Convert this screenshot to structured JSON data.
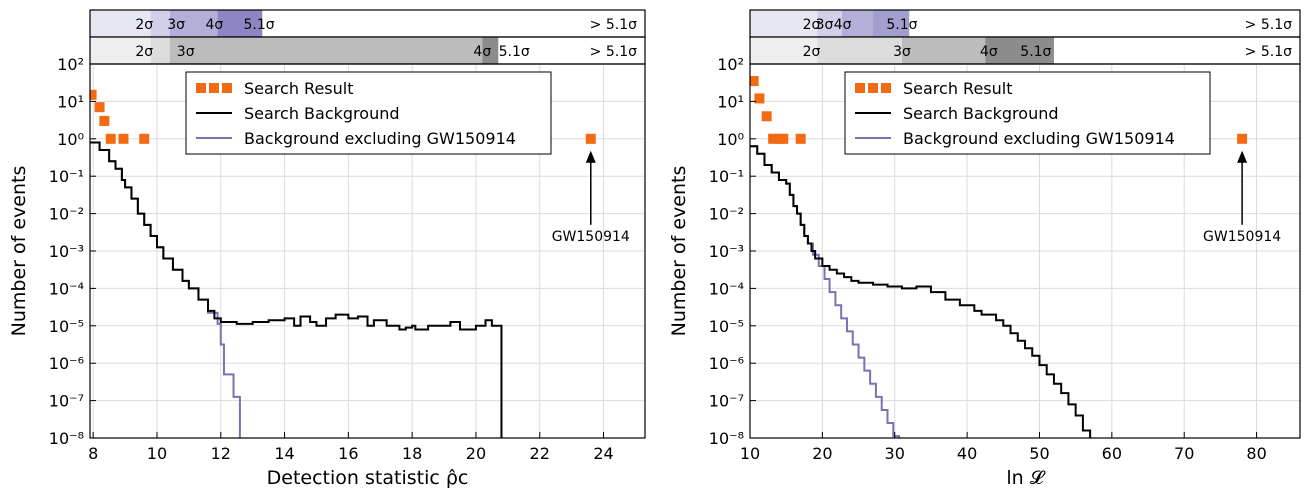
{
  "chart_data": [
    {
      "type": "line",
      "xlabel": "Detection statistic ρ̂c",
      "ylabel": "Number of events",
      "xlim": [
        7.9,
        25.3
      ],
      "ylim": [
        -8,
        2
      ],
      "y_scale": "log",
      "x_ticks": [
        8,
        10,
        12,
        14,
        16,
        18,
        20,
        22,
        24
      ],
      "y_tick_labels": [
        "10^2",
        "10^1",
        "10^0",
        "10^-1",
        "10^-2",
        "10^-3",
        "10^-4",
        "10^-5",
        "10^-6",
        "10^-7",
        "10^-8"
      ],
      "grid": true,
      "legend_position": "top-center",
      "legend": [
        {
          "label": "Search Result",
          "color": "#f26b12",
          "style": "square"
        },
        {
          "label": "Search Background",
          "color": "#000000",
          "style": "line"
        },
        {
          "label": "Background excluding GW150914",
          "color": "#7b71b3",
          "style": "line"
        }
      ],
      "annotation": {
        "text": "GW150914",
        "x": 23.6,
        "y": 1
      },
      "sigma_bands": [
        {
          "row": 1,
          "labels": [
            {
              "text": "2σ",
              "x": 9.6
            },
            {
              "text": "3σ",
              "x": 10.6
            },
            {
              "text": "4σ",
              "x": 11.8
            },
            {
              "text": "5.1σ",
              "x": 13.2
            }
          ],
          "gt_label": "> 5.1σ"
        },
        {
          "row": 2,
          "labels": [
            {
              "text": "2σ",
              "x": 9.6
            },
            {
              "text": "3σ",
              "x": 10.9
            },
            {
              "text": "4σ",
              "x": 20.2
            },
            {
              "text": "5.1σ",
              "x": 21.2
            }
          ],
          "gt_label": "> 5.1σ"
        }
      ],
      "band_colors_row1": [
        {
          "x0": 7.9,
          "x1": 9.8,
          "color": "#e7e6f3"
        },
        {
          "x0": 9.8,
          "x1": 10.4,
          "color": "#d2cfe8"
        },
        {
          "x0": 10.4,
          "x1": 11.9,
          "color": "#b3afd8"
        },
        {
          "x0": 11.9,
          "x1": 13.3,
          "color": "#8d86c2"
        }
      ],
      "band_colors_row2": [
        {
          "x0": 7.9,
          "x1": 9.8,
          "color": "#eeeeee"
        },
        {
          "x0": 9.8,
          "x1": 10.4,
          "color": "#dcdcdc"
        },
        {
          "x0": 10.4,
          "x1": 20.2,
          "color": "#bcbcbc"
        },
        {
          "x0": 20.2,
          "x1": 20.7,
          "color": "#8c8c8c"
        }
      ],
      "series": [
        {
          "name": "Search Result",
          "kind": "points",
          "x": [
            7.95,
            8.2,
            8.35,
            8.55,
            8.95,
            9.6,
            23.6
          ],
          "y": [
            15,
            7,
            3,
            1,
            1,
            1,
            1
          ]
        },
        {
          "name": "Search Background",
          "kind": "step",
          "points": [
            [
              7.9,
              -0.1
            ],
            [
              8.2,
              -0.3
            ],
            [
              8.5,
              -0.6
            ],
            [
              8.7,
              -0.8
            ],
            [
              8.9,
              -1.1
            ],
            [
              9.0,
              -1.3
            ],
            [
              9.2,
              -1.6
            ],
            [
              9.4,
              -2.0
            ],
            [
              9.6,
              -2.3
            ],
            [
              9.8,
              -2.6
            ],
            [
              10.0,
              -2.9
            ],
            [
              10.2,
              -3.2
            ],
            [
              10.5,
              -3.5
            ],
            [
              10.8,
              -3.8
            ],
            [
              11.0,
              -4.0
            ],
            [
              11.3,
              -4.3
            ],
            [
              11.6,
              -4.6
            ],
            [
              11.8,
              -4.8
            ],
            [
              12.0,
              -4.9
            ],
            [
              12.5,
              -4.95
            ],
            [
              13.0,
              -4.9
            ],
            [
              13.5,
              -4.85
            ],
            [
              14.0,
              -4.8
            ],
            [
              14.3,
              -5.0
            ],
            [
              14.5,
              -4.75
            ],
            [
              14.8,
              -4.9
            ],
            [
              15.0,
              -5.0
            ],
            [
              15.3,
              -4.8
            ],
            [
              15.6,
              -4.7
            ],
            [
              16.0,
              -4.8
            ],
            [
              16.3,
              -4.75
            ],
            [
              16.6,
              -5.0
            ],
            [
              16.8,
              -4.85
            ],
            [
              17.2,
              -5.0
            ],
            [
              17.6,
              -5.1
            ],
            [
              17.8,
              -5.05
            ],
            [
              18.0,
              -5.0
            ],
            [
              18.1,
              -5.1
            ],
            [
              18.5,
              -5.0
            ],
            [
              18.8,
              -5.0
            ],
            [
              19.2,
              -4.9
            ],
            [
              19.5,
              -5.1
            ],
            [
              20.0,
              -5.0
            ],
            [
              20.3,
              -4.85
            ],
            [
              20.5,
              -5.0
            ],
            [
              20.8,
              -8.5
            ]
          ]
        },
        {
          "name": "Background excluding GW150914",
          "kind": "step",
          "points": [
            [
              7.9,
              -0.1
            ],
            [
              8.2,
              -0.3
            ],
            [
              8.5,
              -0.6
            ],
            [
              8.7,
              -0.8
            ],
            [
              8.9,
              -1.1
            ],
            [
              9.0,
              -1.3
            ],
            [
              9.2,
              -1.6
            ],
            [
              9.4,
              -2.0
            ],
            [
              9.6,
              -2.3
            ],
            [
              9.8,
              -2.6
            ],
            [
              10.0,
              -2.9
            ],
            [
              10.2,
              -3.2
            ],
            [
              10.5,
              -3.5
            ],
            [
              10.8,
              -3.8
            ],
            [
              11.0,
              -4.0
            ],
            [
              11.3,
              -4.3
            ],
            [
              11.6,
              -4.65
            ],
            [
              11.9,
              -4.95
            ],
            [
              12.0,
              -5.5
            ],
            [
              12.1,
              -6.3
            ],
            [
              12.4,
              -6.9
            ],
            [
              12.6,
              -8.5
            ]
          ]
        }
      ]
    },
    {
      "type": "line",
      "xlabel": "ln 𝓛",
      "ylabel": "Number of events",
      "xlim": [
        10,
        86
      ],
      "ylim": [
        -8,
        2
      ],
      "y_scale": "log",
      "x_ticks": [
        10,
        20,
        30,
        40,
        50,
        60,
        70,
        80
      ],
      "y_tick_labels": [
        "10^2",
        "10^1",
        "10^0",
        "10^-1",
        "10^-2",
        "10^-3",
        "10^-4",
        "10^-5",
        "10^-6",
        "10^-7",
        "10^-8"
      ],
      "grid": true,
      "legend_position": "top-right",
      "legend": [
        {
          "label": "Search Result",
          "color": "#f26b12",
          "style": "square"
        },
        {
          "label": "Search Background",
          "color": "#000000",
          "style": "line"
        },
        {
          "label": "Background excluding GW150914",
          "color": "#7b71b3",
          "style": "line"
        }
      ],
      "annotation": {
        "text": "GW150914",
        "x": 78,
        "y": 1
      },
      "sigma_bands": [
        {
          "row": 1,
          "labels": [
            {
              "text": "2σ",
              "x": 18.5
            },
            {
              "text": "3σ",
              "x": 20.3
            },
            {
              "text": "4σ",
              "x": 22.8
            },
            {
              "text": "5.1σ",
              "x": 31.0
            }
          ],
          "gt_label": "> 5.1σ"
        },
        {
          "row": 2,
          "labels": [
            {
              "text": "2σ",
              "x": 18.5
            },
            {
              "text": "3σ",
              "x": 31.0
            },
            {
              "text": "4σ",
              "x": 43.0
            },
            {
              "text": "5.1σ",
              "x": 49.5
            }
          ],
          "gt_label": "> 5.1σ"
        }
      ],
      "band_colors_row1": [
        {
          "x0": 10,
          "x1": 19.3,
          "color": "#e7e6f3"
        },
        {
          "x0": 19.3,
          "x1": 22.7,
          "color": "#d2cfe8"
        },
        {
          "x0": 22.7,
          "x1": 27.0,
          "color": "#b3afd8"
        },
        {
          "x0": 27.0,
          "x1": 32.0,
          "color": "#a39ed0"
        }
      ],
      "band_colors_row2": [
        {
          "x0": 10,
          "x1": 19.3,
          "color": "#eeeeee"
        },
        {
          "x0": 19.3,
          "x1": 31.0,
          "color": "#dcdcdc"
        },
        {
          "x0": 31.0,
          "x1": 42.5,
          "color": "#bcbcbc"
        },
        {
          "x0": 42.5,
          "x1": 52.0,
          "color": "#8c8c8c"
        }
      ],
      "series": [
        {
          "name": "Search Result",
          "kind": "points",
          "x": [
            10.5,
            11.3,
            12.3,
            13.2,
            14.0,
            14.6,
            17.0,
            78.0
          ],
          "y": [
            35,
            12,
            4,
            1,
            1,
            1,
            1,
            1
          ]
        },
        {
          "name": "Search Background",
          "kind": "step",
          "points": [
            [
              10,
              -0.2
            ],
            [
              11,
              -0.4
            ],
            [
              12,
              -0.7
            ],
            [
              13,
              -0.9
            ],
            [
              14,
              -1.1
            ],
            [
              15,
              -1.2
            ],
            [
              15.5,
              -1.5
            ],
            [
              16,
              -1.8
            ],
            [
              16.5,
              -2.0
            ],
            [
              17,
              -2.3
            ],
            [
              17.5,
              -2.6
            ],
            [
              18,
              -2.8
            ],
            [
              18.5,
              -3.0
            ],
            [
              19,
              -3.2
            ],
            [
              20,
              -3.4
            ],
            [
              21,
              -3.5
            ],
            [
              22,
              -3.6
            ],
            [
              23,
              -3.7
            ],
            [
              24,
              -3.8
            ],
            [
              25,
              -3.85
            ],
            [
              27,
              -3.9
            ],
            [
              29,
              -3.95
            ],
            [
              31,
              -4.0
            ],
            [
              33,
              -3.95
            ],
            [
              35,
              -4.1
            ],
            [
              37,
              -4.3
            ],
            [
              39,
              -4.45
            ],
            [
              41,
              -4.6
            ],
            [
              42,
              -4.7
            ],
            [
              44,
              -4.85
            ],
            [
              45,
              -5.0
            ],
            [
              46,
              -5.2
            ],
            [
              47,
              -5.4
            ],
            [
              48,
              -5.6
            ],
            [
              49,
              -5.8
            ],
            [
              50,
              -6.05
            ],
            [
              51,
              -6.3
            ],
            [
              52,
              -6.55
            ],
            [
              53,
              -6.8
            ],
            [
              54,
              -7.1
            ],
            [
              55,
              -7.4
            ],
            [
              56,
              -7.8
            ],
            [
              57,
              -8.5
            ]
          ]
        },
        {
          "name": "Background excluding GW150914",
          "kind": "step",
          "points": [
            [
              10,
              -0.2
            ],
            [
              11,
              -0.4
            ],
            [
              12,
              -0.7
            ],
            [
              13,
              -0.9
            ],
            [
              14,
              -1.1
            ],
            [
              15,
              -1.2
            ],
            [
              15.5,
              -1.5
            ],
            [
              16,
              -1.8
            ],
            [
              16.5,
              -2.0
            ],
            [
              17,
              -2.3
            ],
            [
              17.5,
              -2.6
            ],
            [
              18,
              -2.8
            ],
            [
              18.7,
              -3.1
            ],
            [
              19.5,
              -3.4
            ],
            [
              20.3,
              -3.75
            ],
            [
              21,
              -4.1
            ],
            [
              21.8,
              -4.45
            ],
            [
              22.6,
              -4.8
            ],
            [
              23.4,
              -5.15
            ],
            [
              24.2,
              -5.5
            ],
            [
              25,
              -5.85
            ],
            [
              25.8,
              -6.2
            ],
            [
              26.6,
              -6.55
            ],
            [
              27.4,
              -6.9
            ],
            [
              28.2,
              -7.25
            ],
            [
              29,
              -7.6
            ],
            [
              29.8,
              -7.95
            ],
            [
              30.6,
              -8.5
            ]
          ]
        }
      ]
    }
  ]
}
